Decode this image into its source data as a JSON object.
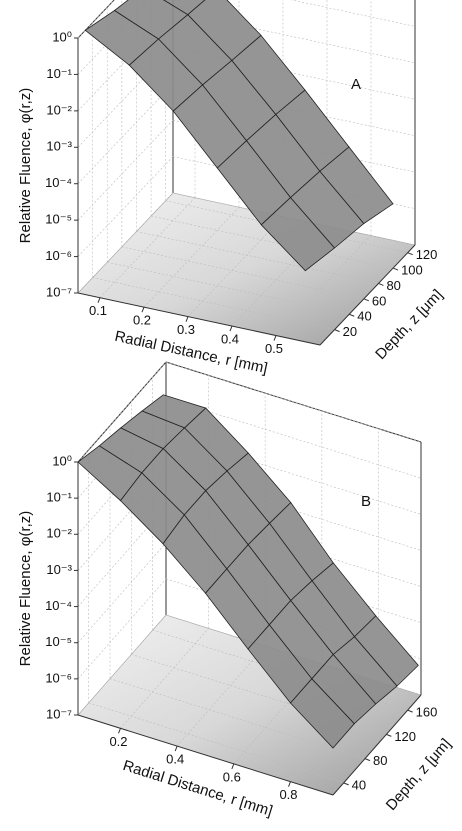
{
  "chart_data": [
    {
      "type": "surface",
      "panel_label": "A",
      "z_label": "Relative Fluence, φ(r,z)",
      "x_label": "Radial Distance, r [mm]",
      "y_label": "Depth, z [μm]",
      "x": [
        0.05,
        0.15,
        0.25,
        0.35,
        0.45,
        0.55
      ],
      "y": [
        10,
        50,
        90,
        130
      ],
      "values": [
        [
          1,
          0.2,
          0.02,
          0.001,
          5e-05,
          5e-06
        ],
        [
          0.5,
          0.15,
          0.015,
          0.0008,
          4e-05,
          3e-06
        ],
        [
          0.3,
          0.1,
          0.01,
          0.0006,
          3e-05,
          2e-06
        ],
        [
          0.2,
          0.07,
          0.007,
          0.0004,
          2e-05,
          1e-06
        ]
      ],
      "xlim": [
        0.05,
        0.6
      ],
      "xticks": [
        0.1,
        0.2,
        0.3,
        0.4,
        0.5
      ],
      "ylim": [
        0,
        130
      ],
      "yticks": [
        20,
        40,
        60,
        80,
        100,
        120
      ],
      "zlim": [
        1e-07,
        1
      ],
      "log_z": true,
      "zticks": [
        {
          "value": 1,
          "label": "10⁰"
        },
        {
          "value": 0.1,
          "label": "10⁻¹"
        },
        {
          "value": 0.01,
          "label": "10⁻²"
        },
        {
          "value": 0.001,
          "label": "10⁻³"
        },
        {
          "value": 0.0001,
          "label": "10⁻⁴"
        },
        {
          "value": 1e-05,
          "label": "10⁻⁵"
        },
        {
          "value": 1e-06,
          "label": "10⁻⁶"
        },
        {
          "value": 1e-07,
          "label": "10⁻⁷"
        }
      ],
      "grid": true,
      "color": "#8c8c8c"
    },
    {
      "type": "surface",
      "panel_label": "B",
      "z_label": "Relative Fluence, φ(r,z)",
      "x_label": "Radial Distance, r [mm]",
      "y_label": "Depth, z [μm]",
      "x": [
        0.05,
        0.2,
        0.35,
        0.5,
        0.65,
        0.8,
        0.95
      ],
      "y": [
        20,
        60,
        100,
        140,
        180
      ],
      "values": [
        [
          1,
          0.2,
          0.03,
          0.003,
          0.0002,
          1.5e-05,
          2e-06
        ],
        [
          0.6,
          0.25,
          0.04,
          0.003,
          0.0002,
          1.5e-05,
          2e-06
        ],
        [
          0.4,
          0.25,
          0.04,
          0.003,
          0.0002,
          1.5e-05,
          1.5e-06
        ],
        [
          0.25,
          0.2,
          0.03,
          0.0025,
          0.00015,
          1e-05,
          1e-06
        ],
        [
          0.15,
          0.15,
          0.02,
          0.002,
          0.0001,
          8e-06,
          8e-07
        ]
      ],
      "xlim": [
        0.05,
        0.95
      ],
      "xticks": [
        0.2,
        0.4,
        0.6,
        0.8
      ],
      "ylim": [
        20,
        185
      ],
      "yticks": [
        40,
        80,
        120,
        160
      ],
      "zlim": [
        1e-07,
        1
      ],
      "log_z": true,
      "zticks": [
        {
          "value": 1,
          "label": "10⁰"
        },
        {
          "value": 0.1,
          "label": "10⁻¹"
        },
        {
          "value": 0.01,
          "label": "10⁻²"
        },
        {
          "value": 0.001,
          "label": "10⁻³"
        },
        {
          "value": 0.0001,
          "label": "10⁻⁴"
        },
        {
          "value": 1e-05,
          "label": "10⁻⁵"
        },
        {
          "value": 1e-06,
          "label": "10⁻⁶"
        },
        {
          "value": 1e-07,
          "label": "10⁻⁷"
        }
      ],
      "grid": true,
      "color": "#8c8c8c"
    }
  ]
}
